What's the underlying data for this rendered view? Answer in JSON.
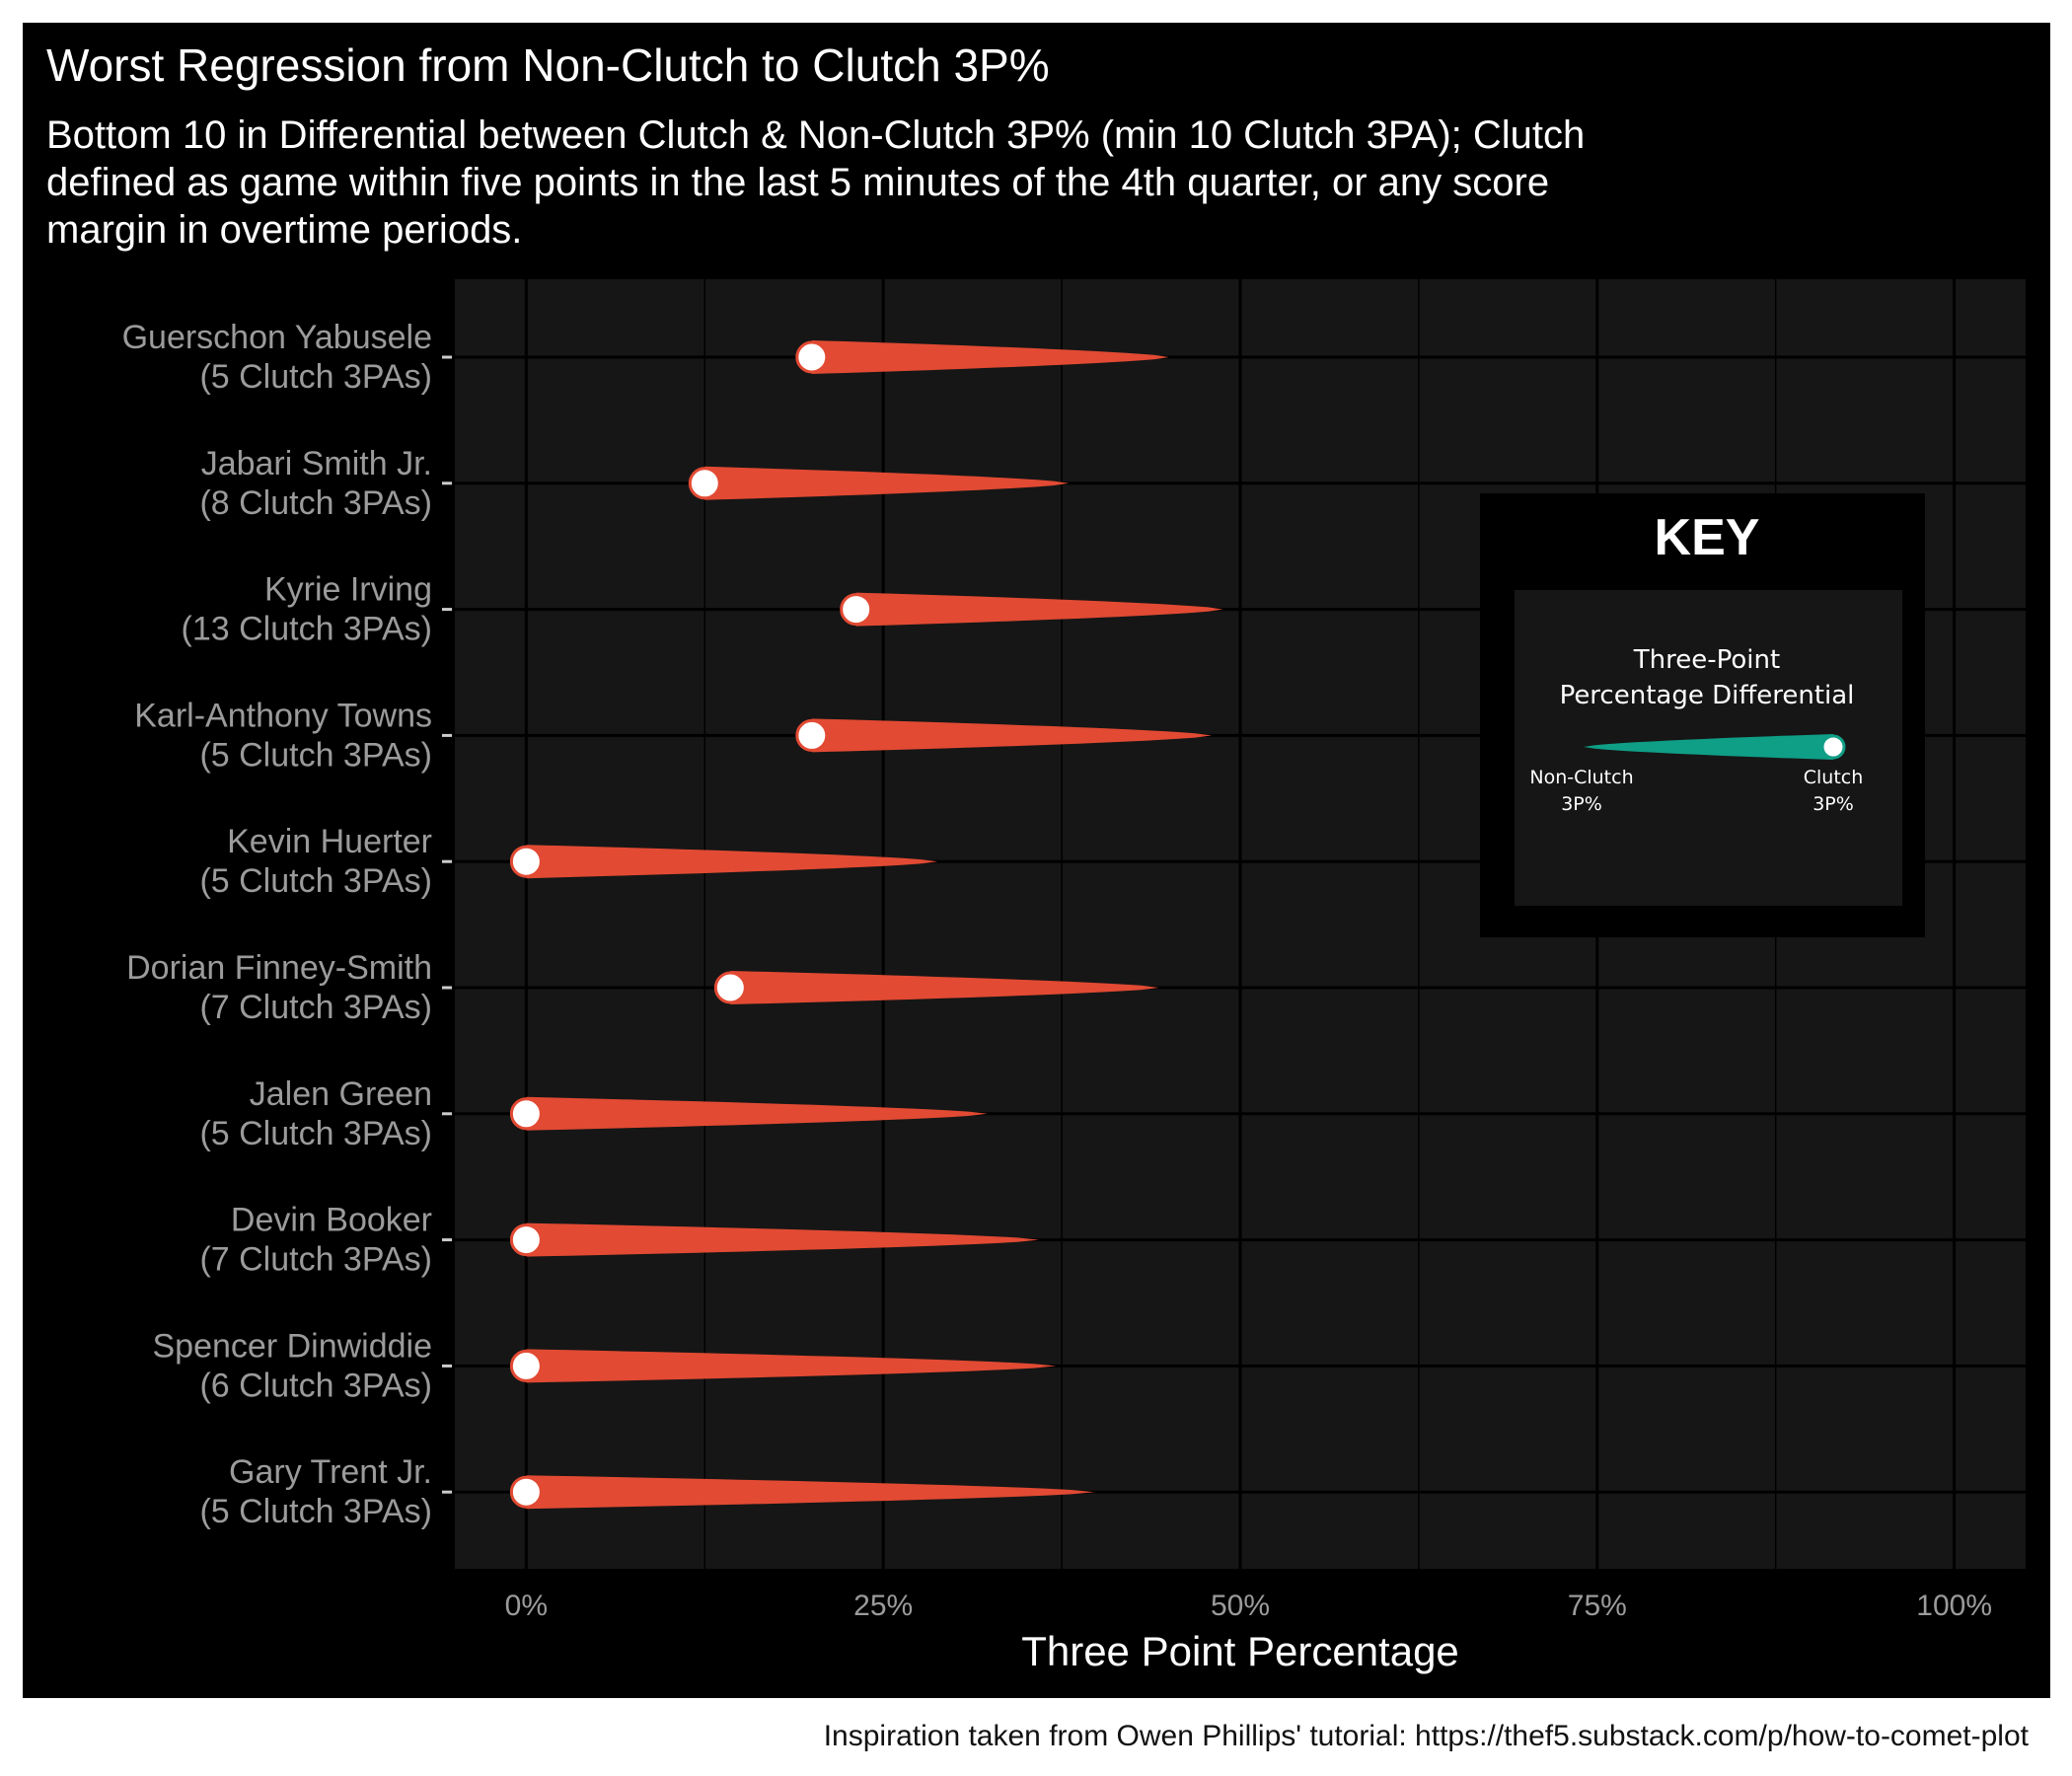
{
  "colors": {
    "panel_background": "#000000",
    "plot_background": "#161616",
    "grid": "#000000",
    "comet": "#e24a33",
    "key_comet": "#0f9e86",
    "point_fill": "#ffffff",
    "axis_text": "#9b9b9b",
    "text": "#ffffff"
  },
  "header": {
    "title": "Worst Regression from Non-Clutch to Clutch 3P%",
    "subtitle_lines": [
      "Bottom 10 in Differential between Clutch & Non-Clutch 3P% (min 10 Clutch 3PA); Clutch",
      "defined as game within five points in the last 5 minutes of the 4th quarter, or any score",
      "margin in overtime periods."
    ]
  },
  "caption": "Inspiration taken from Owen Phillips' tutorial: https://thef5.substack.com/p/how-to-comet-plot",
  "key": {
    "title": "KEY",
    "label_lines": [
      "Three-Point",
      "Percentage Differential"
    ],
    "left_label_lines": [
      "Non-Clutch",
      "3P%"
    ],
    "right_label_lines": [
      "Clutch",
      "3P%"
    ]
  },
  "chart_data": {
    "type": "comet",
    "title": "Worst Regression from Non-Clutch to Clutch 3P%",
    "xlabel": "Three Point Percentage",
    "ylabel": "",
    "xlim": [
      -0.05,
      1.05
    ],
    "x_ticks": [
      0,
      0.25,
      0.5,
      0.75,
      1.0
    ],
    "x_tick_labels": [
      "0%",
      "25%",
      "50%",
      "75%",
      "100%"
    ],
    "grid": true,
    "legend": "right (KEY box)",
    "rows": [
      {
        "player": "Guerschon Yabusele",
        "attempts_label": "(5 Clutch 3PAs)",
        "non_clutch_3p": 0.45,
        "clutch_3p": 0.2
      },
      {
        "player": "Jabari Smith Jr.",
        "attempts_label": "(8 Clutch 3PAs)",
        "non_clutch_3p": 0.38,
        "clutch_3p": 0.125
      },
      {
        "player": "Kyrie Irving",
        "attempts_label": "(13 Clutch 3PAs)",
        "non_clutch_3p": 0.488,
        "clutch_3p": 0.231
      },
      {
        "player": "Karl-Anthony Towns",
        "attempts_label": "(5 Clutch 3PAs)",
        "non_clutch_3p": 0.48,
        "clutch_3p": 0.2
      },
      {
        "player": "Kevin Huerter",
        "attempts_label": "(5 Clutch 3PAs)",
        "non_clutch_3p": 0.288,
        "clutch_3p": 0.0
      },
      {
        "player": "Dorian Finney-Smith",
        "attempts_label": "(7 Clutch 3PAs)",
        "non_clutch_3p": 0.443,
        "clutch_3p": 0.143
      },
      {
        "player": "Jalen Green",
        "attempts_label": "(5 Clutch 3PAs)",
        "non_clutch_3p": 0.323,
        "clutch_3p": 0.0
      },
      {
        "player": "Devin Booker",
        "attempts_label": "(7 Clutch 3PAs)",
        "non_clutch_3p": 0.359,
        "clutch_3p": 0.0
      },
      {
        "player": "Spencer Dinwiddie",
        "attempts_label": "(6 Clutch 3PAs)",
        "non_clutch_3p": 0.371,
        "clutch_3p": 0.0
      },
      {
        "player": "Gary Trent Jr.",
        "attempts_label": "(5 Clutch 3PAs)",
        "non_clutch_3p": 0.398,
        "clutch_3p": 0.0
      }
    ]
  }
}
